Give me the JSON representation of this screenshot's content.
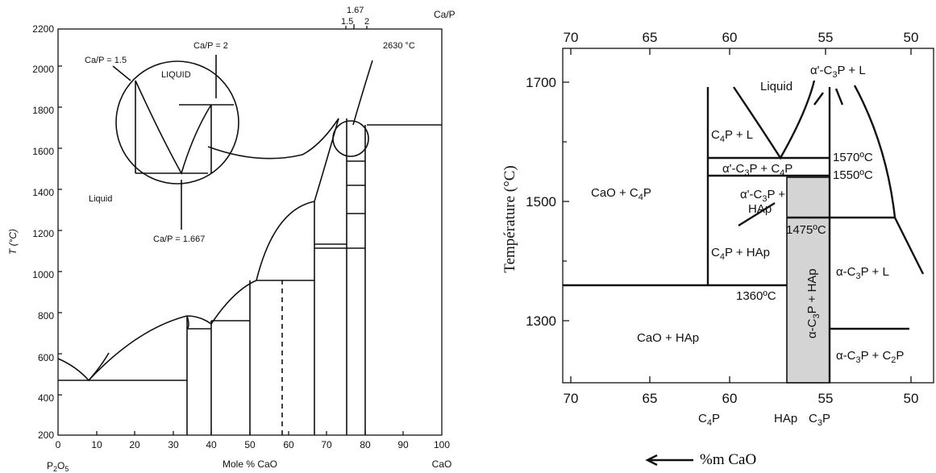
{
  "left": {
    "x_axis_title": "Mole % CaO",
    "x_left_end": "P",
    "x_left_end_sub": "2",
    "x_left_end_tail": "O",
    "x_left_end_sub2": "5",
    "x_right_end": "CaO",
    "y_axis_title": "T (°C)",
    "top_right_label": "Ca/P",
    "top_ratios": [
      "1.5",
      "1.67",
      "2"
    ],
    "temp_label": "2630 °C",
    "x_ticks": [
      "0",
      "10",
      "20",
      "30",
      "40",
      "50",
      "60",
      "70",
      "80",
      "90",
      "100"
    ],
    "y_ticks": [
      "200",
      "400",
      "600",
      "800",
      "1000",
      "1200",
      "1400",
      "1600",
      "1800",
      "2000",
      "2200"
    ],
    "annotations": {
      "ca_p_15": "Ca/P = 1.5",
      "ca_p_2": "Ca/P = 2",
      "ca_p_1667": "Ca/P = 1.667",
      "liquid_inset": "LIQUID",
      "liquid": "Liquid"
    }
  },
  "right": {
    "y_axis_title": "Température (°C)",
    "x_axis_title": "%m CaO",
    "top_ticks": [
      "70",
      "65",
      "60",
      "55",
      "50"
    ],
    "bottom_ticks": [
      "70",
      "65",
      "60",
      "55",
      "50"
    ],
    "y_ticks": [
      "1700",
      "1500",
      "1300"
    ],
    "compounds": [
      "C",
      "HAp",
      "C"
    ],
    "temps": [
      "1570ºC",
      "1550ºC",
      "1475ºC",
      "1360ºC"
    ],
    "regions": {
      "liquid": "Liquid",
      "cao_c4p": "CaO + C",
      "cao_hap": "CaO + HAp",
      "c4p_l": "C",
      "c4p_hap": "C",
      "a_c3p_l": "α-C",
      "a_c3p_c2p": "α-C",
      "a1_c3p_c4p": "α'-C",
      "a1_c3p_l_top": "α'-C",
      "a1_c3p_hap": "α'-C",
      "hap": "HAp",
      "a_c3p_hap": "α-C"
    }
  }
}
